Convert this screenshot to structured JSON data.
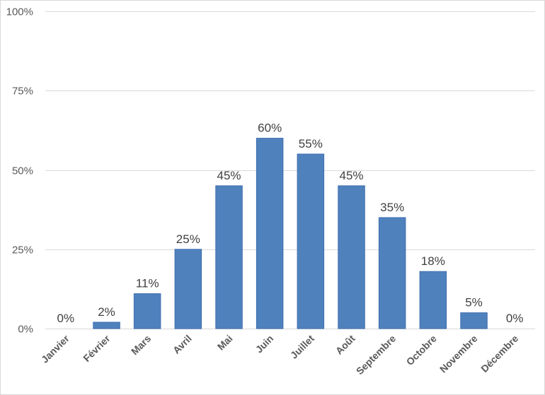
{
  "chart_data": {
    "type": "bar",
    "title": "",
    "xlabel": "",
    "ylabel": "",
    "categories": [
      "Janvier",
      "Février",
      "Mars",
      "Avril",
      "Mai",
      "Juin",
      "Juillet",
      "Août",
      "Septembre",
      "Octobre",
      "Novembre",
      "Décembre"
    ],
    "values": [
      0,
      2,
      11,
      25,
      45,
      60,
      55,
      45,
      35,
      18,
      5,
      0
    ],
    "data_labels": [
      "0%",
      "2%",
      "11%",
      "25%",
      "45%",
      "60%",
      "55%",
      "45%",
      "35%",
      "18%",
      "5%",
      "0%"
    ],
    "ylim": [
      0,
      100
    ],
    "yticks": [
      0,
      25,
      50,
      75,
      100
    ],
    "ytick_labels": [
      "0%",
      "25%",
      "50%",
      "75%",
      "100%"
    ],
    "grid": true,
    "legend": "none",
    "bar_color": "#4f81bd"
  }
}
